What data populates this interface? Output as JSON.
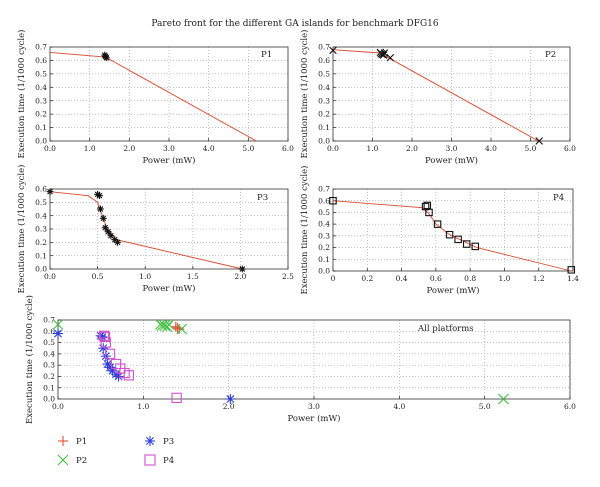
{
  "title": "Pareto front for the different GA islands for benchmark DFG16",
  "chart_data": [
    {
      "id": "p1",
      "type": "scatter",
      "label": "P1",
      "xlabel": "Power (mW)",
      "ylabel": "Execution time (1/1000 cycle)",
      "xlim": [
        0,
        6
      ],
      "ylim": [
        0,
        0.7
      ],
      "xticks": [
        "0.0",
        "1.0",
        "2.0",
        "3.0",
        "4.0",
        "5.0",
        "6.0"
      ],
      "yticks": [
        "0.0",
        "0.1",
        "0.2",
        "0.3",
        "0.4",
        "0.5",
        "0.6",
        "0.7"
      ],
      "grid": true,
      "line": [
        [
          0,
          0.66
        ],
        [
          1.4,
          0.625
        ],
        [
          5.2,
          0
        ]
      ],
      "points": [
        [
          1.38,
          0.64
        ],
        [
          1.4,
          0.63
        ],
        [
          1.42,
          0.62
        ]
      ],
      "marker": "star"
    },
    {
      "id": "p2",
      "type": "scatter",
      "label": "P2",
      "xlabel": "Power (mW)",
      "ylabel": "Execution time (1/1000 cycle)",
      "xlim": [
        0,
        6
      ],
      "ylim": [
        0,
        0.7
      ],
      "xticks": [
        "0.0",
        "1.0",
        "2.0",
        "3.0",
        "4.0",
        "5.0",
        "6.0"
      ],
      "yticks": [
        "0.0",
        "0.1",
        "0.2",
        "0.3",
        "0.4",
        "0.5",
        "0.6",
        "0.7"
      ],
      "grid": true,
      "line": [
        [
          0,
          0.68
        ],
        [
          1.2,
          0.655
        ],
        [
          1.4,
          0.62
        ],
        [
          5.2,
          0
        ]
      ],
      "points": [
        [
          0,
          0.675
        ],
        [
          1.2,
          0.66
        ],
        [
          1.22,
          0.65
        ],
        [
          1.25,
          0.645
        ],
        [
          1.28,
          0.64
        ],
        [
          1.3,
          0.655
        ],
        [
          1.45,
          0.62
        ],
        [
          5.22,
          0
        ]
      ],
      "marker": "x"
    },
    {
      "id": "p3",
      "type": "scatter",
      "label": "P3",
      "xlabel": "Power (mW)",
      "ylabel": "Execution time (1/1000 cycle)",
      "xlim": [
        0,
        2.5
      ],
      "ylim": [
        0,
        0.6
      ],
      "xticks": [
        "0.0",
        "0.5",
        "1.0",
        "1.5",
        "2.0",
        "2.5"
      ],
      "yticks": [
        "0.0",
        "0.1",
        "0.2",
        "0.3",
        "0.4",
        "0.5",
        "0.6"
      ],
      "grid": true,
      "line": [
        [
          0,
          0.58
        ],
        [
          0.4,
          0.55
        ],
        [
          0.5,
          0.5
        ],
        [
          0.6,
          0.3
        ],
        [
          0.7,
          0.22
        ],
        [
          2.02,
          0
        ]
      ],
      "points": [
        [
          0.0,
          0.58
        ],
        [
          0.5,
          0.56
        ],
        [
          0.52,
          0.55
        ],
        [
          0.53,
          0.45
        ],
        [
          0.56,
          0.38
        ],
        [
          0.58,
          0.31
        ],
        [
          0.61,
          0.28
        ],
        [
          0.64,
          0.25
        ],
        [
          0.68,
          0.22
        ],
        [
          0.71,
          0.2
        ],
        [
          2.02,
          0.0
        ]
      ],
      "marker": "star"
    },
    {
      "id": "p4",
      "type": "scatter",
      "label": "P4",
      "xlabel": "Power (mW)",
      "ylabel": "Execution time (1/1000 cycle)",
      "xlim": [
        0,
        1.4
      ],
      "ylim": [
        0,
        0.7
      ],
      "xticks": [
        "0",
        "0.2",
        "0.4",
        "0.6",
        "0.8",
        "1.0",
        "1.2",
        "1.4"
      ],
      "yticks": [
        "0.0",
        "0.1",
        "0.2",
        "0.3",
        "0.4",
        "0.5",
        "0.6",
        "0.7"
      ],
      "grid": true,
      "line": [
        [
          0,
          0.6
        ],
        [
          0.52,
          0.54
        ],
        [
          0.56,
          0.49
        ],
        [
          0.6,
          0.4
        ],
        [
          0.68,
          0.31
        ],
        [
          0.84,
          0.2
        ],
        [
          1.39,
          0
        ]
      ],
      "points": [
        [
          0.0,
          0.6
        ],
        [
          0.54,
          0.55
        ],
        [
          0.55,
          0.56
        ],
        [
          0.56,
          0.5
        ],
        [
          0.61,
          0.4
        ],
        [
          0.68,
          0.31
        ],
        [
          0.73,
          0.27
        ],
        [
          0.78,
          0.23
        ],
        [
          0.83,
          0.21
        ],
        [
          1.39,
          0.01
        ]
      ],
      "marker": "square"
    },
    {
      "id": "all",
      "type": "scatter",
      "label": "All platforms",
      "xlabel": "Power (mW)",
      "ylabel": "Execution time (1/1000 cycle)",
      "xlim": [
        0,
        6
      ],
      "ylim": [
        0,
        0.7
      ],
      "xticks": [
        "0.0",
        "1.0",
        "2.0",
        "3.0",
        "4.0",
        "5.0",
        "6.0"
      ],
      "yticks": [
        "0.0",
        "0.1",
        "0.2",
        "0.3",
        "0.4",
        "0.5",
        "0.6",
        "0.7"
      ],
      "grid": true,
      "series": [
        {
          "name": "P1",
          "marker": "plus",
          "color": "#e8503a",
          "points": [
            [
              1.38,
              0.64
            ],
            [
              1.4,
              0.63
            ],
            [
              1.42,
              0.62
            ]
          ]
        },
        {
          "name": "P2",
          "marker": "x",
          "color": "#3fbf3f",
          "points": [
            [
              0.0,
              0.66
            ],
            [
              1.2,
              0.66
            ],
            [
              1.22,
              0.65
            ],
            [
              1.25,
              0.65
            ],
            [
              1.28,
              0.64
            ],
            [
              1.3,
              0.66
            ],
            [
              1.45,
              0.62
            ],
            [
              5.22,
              0.0
            ]
          ]
        },
        {
          "name": "P3",
          "marker": "star",
          "color": "#2b3fd6",
          "points": [
            [
              0.0,
              0.58
            ],
            [
              0.5,
              0.56
            ],
            [
              0.52,
              0.55
            ],
            [
              0.53,
              0.45
            ],
            [
              0.56,
              0.38
            ],
            [
              0.58,
              0.31
            ],
            [
              0.61,
              0.28
            ],
            [
              0.64,
              0.25
            ],
            [
              0.68,
              0.22
            ],
            [
              0.71,
              0.2
            ],
            [
              2.02,
              0.0
            ]
          ]
        },
        {
          "name": "P4",
          "marker": "square",
          "color": "#d050d0",
          "points": [
            [
              0.54,
              0.56
            ],
            [
              0.55,
              0.55
            ],
            [
              0.56,
              0.5
            ],
            [
              0.61,
              0.4
            ],
            [
              0.68,
              0.31
            ],
            [
              0.73,
              0.27
            ],
            [
              0.78,
              0.23
            ],
            [
              0.83,
              0.21
            ],
            [
              1.39,
              0.01
            ]
          ]
        }
      ]
    }
  ]
}
